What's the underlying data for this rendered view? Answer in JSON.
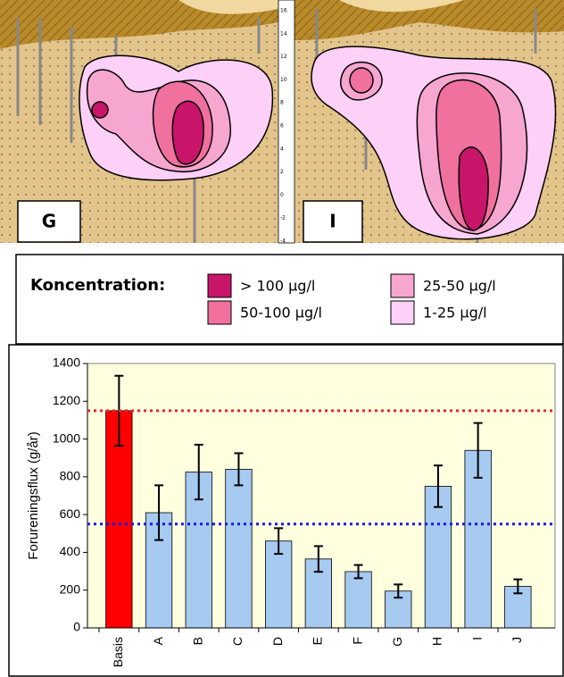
{
  "maps": {
    "panels": [
      "G",
      "I"
    ],
    "scale_labels": [
      16,
      14,
      12,
      10,
      8,
      6,
      4,
      2,
      0,
      -2,
      -4
    ]
  },
  "legend": {
    "title": "Koncentration:",
    "items": [
      {
        "label": "> 100 µg/l",
        "color": "#c8156a"
      },
      {
        "label": "50-100 µg/l",
        "color": "#f0709e"
      },
      {
        "label": "25-50 µg/l",
        "color": "#f7a6cf"
      },
      {
        "label": "1-25 µg/l",
        "color": "#fdd0f7"
      }
    ]
  },
  "chart_data": {
    "type": "bar",
    "categories": [
      "Basis",
      "A",
      "B",
      "C",
      "D",
      "E",
      "F",
      "G",
      "H",
      "I",
      "J"
    ],
    "values": [
      1150,
      610,
      825,
      840,
      460,
      365,
      298,
      195,
      750,
      940,
      220
    ],
    "errors": [
      185,
      145,
      145,
      85,
      68,
      68,
      35,
      35,
      110,
      145,
      37
    ],
    "colors": [
      "#ff0000",
      "#a6caf0",
      "#a6caf0",
      "#a6caf0",
      "#a6caf0",
      "#a6caf0",
      "#a6caf0",
      "#a6caf0",
      "#a6caf0",
      "#a6caf0",
      "#a6caf0"
    ],
    "ylabel": "Forureningsflux (g/år)",
    "ylim": [
      0,
      1400
    ],
    "yticks": [
      0,
      200,
      400,
      600,
      800,
      1000,
      1200,
      1400
    ],
    "reference_lines": [
      {
        "value": 1150,
        "color": "#e8262c"
      },
      {
        "value": 550,
        "color": "#1a1adb"
      }
    ],
    "plot_background": "#ffffe0"
  }
}
